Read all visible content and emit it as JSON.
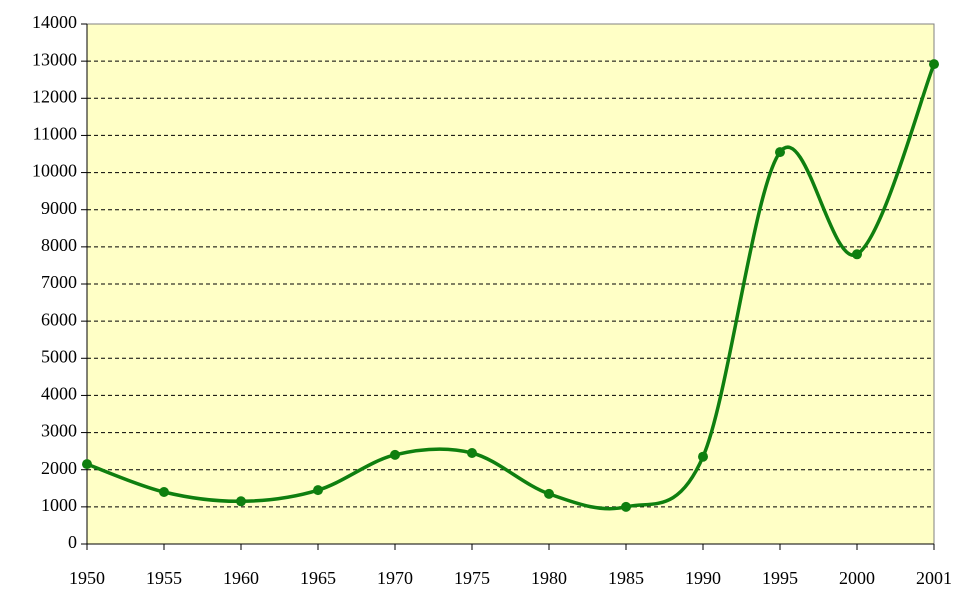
{
  "chart_data": {
    "type": "line",
    "categories": [
      "1950",
      "1955",
      "1960",
      "1965",
      "1970",
      "1975",
      "1980",
      "1985",
      "1990",
      "1995",
      "2000",
      "2001"
    ],
    "values": [
      2150,
      1400,
      1150,
      1450,
      2400,
      2450,
      1350,
      1000,
      2350,
      10550,
      7800,
      12920
    ],
    "color": "#0f7f0f",
    "background": "#ffffc6",
    "ylim": [
      0,
      14000
    ],
    "yticks": [
      0,
      1000,
      2000,
      3000,
      4000,
      5000,
      6000,
      7000,
      8000,
      9000,
      10000,
      11000,
      12000,
      13000,
      14000
    ],
    "grid": true,
    "smooth": true
  }
}
